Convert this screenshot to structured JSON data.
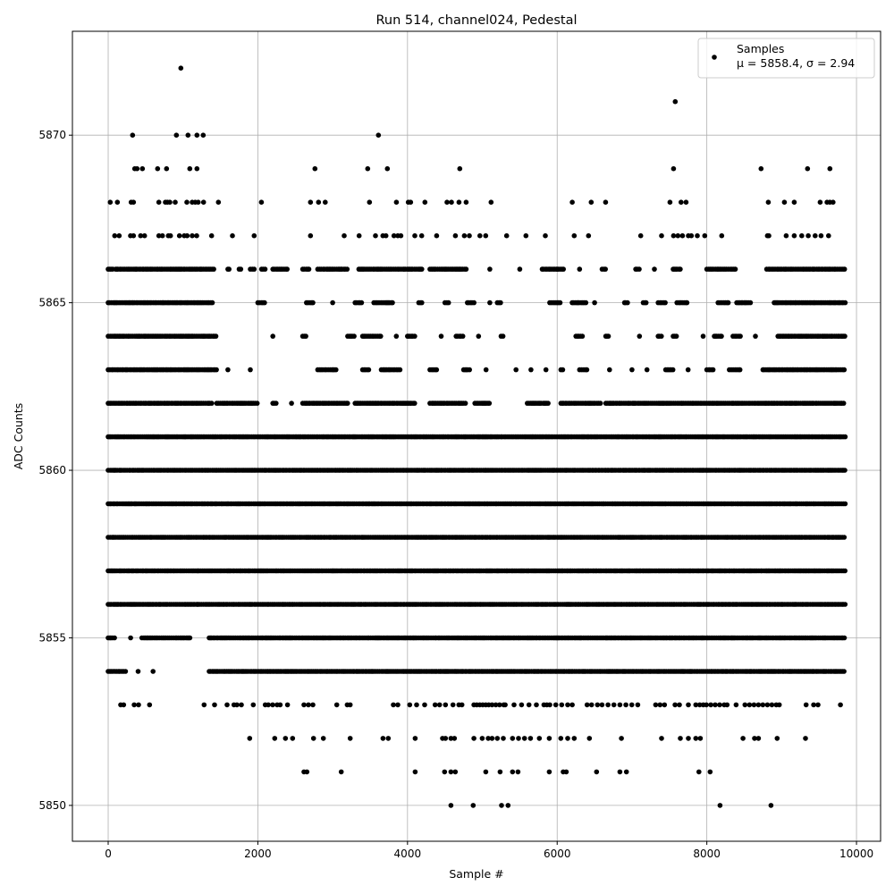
{
  "chart_data": {
    "type": "scatter",
    "title": "Run 514, channel024, Pedestal",
    "xlabel": "Sample #",
    "ylabel": "ADC Counts",
    "xlim": [
      -478,
      10322
    ],
    "ylim": [
      5848.93,
      5873.1
    ],
    "xticks": [
      0,
      2000,
      4000,
      6000,
      8000,
      10000
    ],
    "xtick_labels": [
      "0",
      "2000",
      "4000",
      "6000",
      "8000",
      "10000"
    ],
    "yticks": [
      5850,
      5855,
      5860,
      5865,
      5870
    ],
    "ytick_labels": [
      "5850",
      "5855",
      "5860",
      "5865",
      "5870"
    ],
    "grid": true,
    "legend": {
      "placement": "top-right",
      "entries": [
        {
          "label": "Samples",
          "stats": "μ = 5858.4, σ = 2.94"
        }
      ]
    },
    "marker_color": "#000000",
    "series": [
      {
        "name": "Samples",
        "points_by_level": {
          "5872": [
            971
          ],
          "5871": [
            7578
          ],
          "5870": [
            326,
            912,
            1067,
            1186,
            1270,
            3612
          ],
          "5869": [
            355,
            386,
            458,
            661,
            780,
            1091,
            1186,
            2763,
            3468,
            3731,
            4699,
            7555,
            8725,
            9346,
            9645
          ],
          "5868": [
            27,
            123,
            307,
            338,
            677,
            765,
            792,
            824,
            896,
            1051,
            1123,
            1163,
            1203,
            1275,
            1473,
            2047,
            2704,
            2811,
            2900,
            3492,
            3851,
            4011,
            4042,
            4233,
            4528,
            4588,
            4688,
            4783,
            5117,
            6201,
            6455,
            6647,
            7507,
            7655,
            7722,
            8821,
            9036,
            9168,
            9514,
            9606,
            9645,
            9686
          ],
          "5867": [
            87,
            147,
            299,
            338,
            434,
            486,
            677,
            725,
            804,
            833,
            952,
            1016,
            1055,
            1123,
            1183,
            1382,
            1661,
            1951,
            2704,
            3154,
            3353,
            3572,
            3671,
            3712,
            3819,
            3871,
            3911,
            4098,
            4190,
            4389,
            4640,
            4759,
            4827,
            4967,
            5045,
            5325,
            5583,
            5842,
            6228,
            6419,
            7117,
            7395,
            7555,
            7614,
            7674,
            7754,
            7793,
            7873,
            7972,
            8199,
            8809,
            8829,
            9060,
            9168,
            9268,
            9355,
            9447,
            9526,
            9627
          ],
          "5853": [
            167,
            207,
            347,
            406,
            553,
            1282,
            1422,
            1589,
            1681,
            1720,
            1780,
            1939,
            2099,
            2139,
            2198,
            2258,
            2298,
            2397,
            2616,
            2676,
            2736,
            3055,
            3194,
            3234,
            3811,
            3871,
            4030,
            4122,
            4229,
            4369,
            4429,
            4508,
            4608,
            4687,
            4727,
            4887,
            4926,
            4966,
            5006,
            5046,
            5086,
            5130,
            5180,
            5230,
            5285,
            5305,
            5424,
            5524,
            5623,
            5723,
            5823,
            5862,
            5902,
            5982,
            6061,
            6141,
            6201,
            6400,
            6460,
            6539,
            6599,
            6679,
            6758,
            6838,
            6918,
            6997,
            7077,
            7316,
            7375,
            7435,
            7575,
            7634,
            7754,
            7853,
            7905,
            7953,
            7993,
            8053,
            8112,
            8172,
            8232,
            8271,
            8391,
            8510,
            8570,
            8630,
            8690,
            8749,
            8809,
            8869,
            8928,
            8968,
            9327,
            9427,
            9486,
            9785
          ],
          "5852": [
            1891,
            2226,
            2369,
            2465,
            2744,
            2875,
            3234,
            3672,
            3743,
            4102,
            4468,
            4508,
            4580,
            4627,
            4887,
            4998,
            5078,
            5130,
            5200,
            5280,
            5404,
            5484,
            5564,
            5643,
            5762,
            5894,
            6049,
            6141,
            6228,
            6431,
            6858,
            7395,
            7646,
            7754,
            7853,
            7913,
            8483,
            8638,
            8690,
            8940,
            9319
          ],
          "5851": [
            2616,
            2656,
            3115,
            4102,
            4496,
            4580,
            4639,
            5046,
            5237,
            5404,
            5476,
            5894,
            6081,
            6121,
            6527,
            6838,
            6926,
            7894,
            8044
          ],
          "5850": [
            4580,
            4878,
            5257,
            5344,
            8176,
            8857
          ]
        },
        "dense_segments_by_level": {
          "5866": [
            [
              0,
              80
            ],
            [
              100,
              1420
            ],
            [
              1600,
              1620
            ],
            [
              1750,
              1790
            ],
            [
              1900,
              1960
            ],
            [
              2050,
              2100
            ],
            [
              2200,
              2400
            ],
            [
              2600,
              2700
            ],
            [
              2800,
              3200
            ],
            [
              3350,
              4200
            ],
            [
              4300,
              4800
            ],
            [
              5100,
              5110
            ],
            [
              5500,
              5510
            ],
            [
              5800,
              6100
            ],
            [
              6300,
              6320
            ],
            [
              6600,
              6650
            ],
            [
              7050,
              7100
            ],
            [
              7300,
              7310
            ],
            [
              7550,
              7650
            ],
            [
              8000,
              8400
            ],
            [
              8800,
              9850
            ]
          ],
          "5865": [
            [
              0,
              1400
            ],
            [
              2000,
              2100
            ],
            [
              2650,
              2750
            ],
            [
              3000,
              3010
            ],
            [
              3300,
              3400
            ],
            [
              3550,
              3800
            ],
            [
              4150,
              4200
            ],
            [
              4500,
              4550
            ],
            [
              4800,
              4900
            ],
            [
              5100,
              5110
            ],
            [
              5200,
              5250
            ],
            [
              5900,
              6050
            ],
            [
              6200,
              6400
            ],
            [
              6500,
              6510
            ],
            [
              6900,
              6950
            ],
            [
              7150,
              7200
            ],
            [
              7350,
              7450
            ],
            [
              7600,
              7750
            ],
            [
              8150,
              8300
            ],
            [
              8400,
              8600
            ],
            [
              8900,
              9850
            ]
          ],
          "5864": [
            [
              0,
              1450
            ],
            [
              2200,
              2210
            ],
            [
              2600,
              2650
            ],
            [
              3200,
              3300
            ],
            [
              3400,
              3650
            ],
            [
              3850,
              3860
            ],
            [
              4000,
              4100
            ],
            [
              4450,
              4460
            ],
            [
              4650,
              4750
            ],
            [
              4950,
              4960
            ],
            [
              5250,
              5300
            ],
            [
              6250,
              6350
            ],
            [
              6650,
              6700
            ],
            [
              7100,
              7110
            ],
            [
              7350,
              7400
            ],
            [
              7550,
              7600
            ],
            [
              7950,
              7960
            ],
            [
              8100,
              8200
            ],
            [
              8350,
              8450
            ],
            [
              8650,
              8660
            ],
            [
              8950,
              9850
            ]
          ],
          "5863": [
            [
              0,
              1450
            ],
            [
              1600,
              1610
            ],
            [
              1900,
              1910
            ],
            [
              2800,
              3050
            ],
            [
              3400,
              3500
            ],
            [
              3650,
              3900
            ],
            [
              4300,
              4400
            ],
            [
              4750,
              4850
            ],
            [
              5050,
              5060
            ],
            [
              5450,
              5460
            ],
            [
              5650,
              5660
            ],
            [
              5850,
              5860
            ],
            [
              6050,
              6100
            ],
            [
              6300,
              6400
            ],
            [
              6700,
              6710
            ],
            [
              7000,
              7010
            ],
            [
              7200,
              7210
            ],
            [
              7450,
              7550
            ],
            [
              7750,
              7760
            ],
            [
              8000,
              8100
            ],
            [
              8300,
              8450
            ],
            [
              8750,
              9850
            ]
          ],
          "5862": [
            [
              0,
              1400
            ],
            [
              1450,
              2000
            ],
            [
              2200,
              2250
            ],
            [
              2450,
              2460
            ],
            [
              2600,
              3200
            ],
            [
              3300,
              4100
            ],
            [
              4300,
              4800
            ],
            [
              4900,
              5100
            ],
            [
              5600,
              5900
            ],
            [
              6050,
              6600
            ],
            [
              6650,
              9850
            ]
          ],
          "5861": [
            [
              0,
              9850
            ]
          ],
          "5860": [
            [
              0,
              9850
            ]
          ],
          "5859": [
            [
              0,
              9850
            ]
          ],
          "5858": [
            [
              0,
              9850
            ]
          ],
          "5857": [
            [
              0,
              9850
            ]
          ],
          "5856": [
            [
              0,
              1200
            ],
            [
              1200,
              9850
            ]
          ],
          "5855": [
            [
              0,
              100
            ],
            [
              300,
              310
            ],
            [
              450,
              1100
            ],
            [
              1350,
              9850
            ]
          ],
          "5854": [
            [
              0,
              250
            ],
            [
              400,
              410
            ],
            [
              600,
              610
            ],
            [
              1350,
              9850
            ]
          ]
        }
      }
    ]
  }
}
